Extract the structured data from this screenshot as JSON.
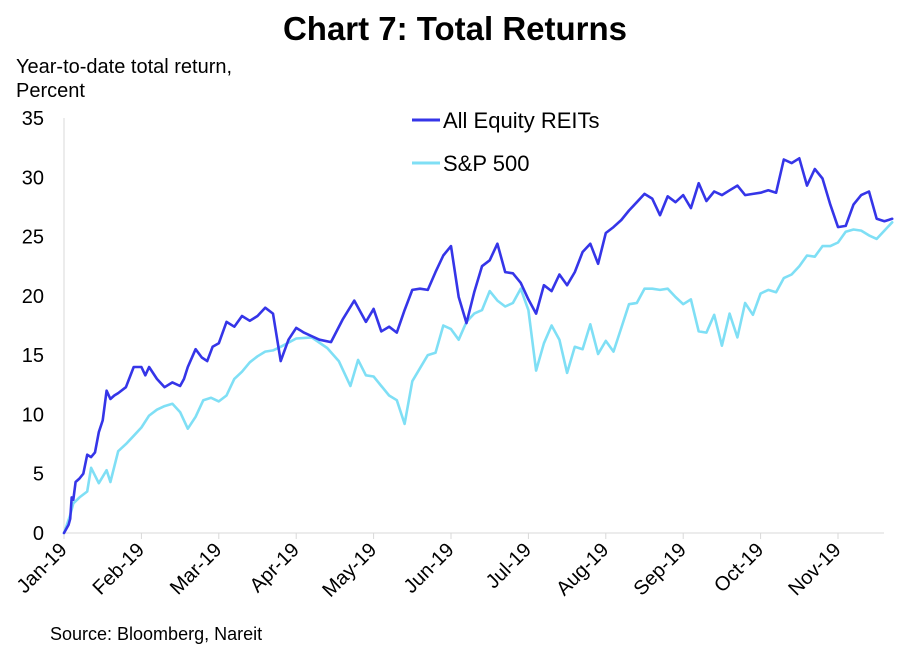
{
  "chart_data": {
    "type": "line",
    "title": "Chart 7: Total Returns",
    "ylabel_lines": [
      "Year-to-date total return,",
      "Percent"
    ],
    "xlabel": "",
    "ylim": [
      0,
      35
    ],
    "y_ticks": [
      0,
      5,
      10,
      15,
      20,
      25,
      30,
      35
    ],
    "x_tick_labels": [
      "Jan-19",
      "Feb-19",
      "Mar-19",
      "Apr-19",
      "May-19",
      "Jun-19",
      "Jul-19",
      "Aug-19",
      "Sep-19",
      "Oct-19",
      "Nov-19"
    ],
    "x_domain_months": [
      0,
      10.7
    ],
    "legend_position": "top-center",
    "grid": false,
    "source": "Source: Bloomberg, Nareit",
    "series": [
      {
        "name": "All Equity REITs",
        "color": "#3535e8",
        "x": [
          0.0,
          0.06,
          0.08,
          0.1,
          0.12,
          0.15,
          0.2,
          0.25,
          0.3,
          0.35,
          0.4,
          0.45,
          0.5,
          0.55,
          0.6,
          0.65,
          0.7,
          0.8,
          0.9,
          1.0,
          1.05,
          1.1,
          1.2,
          1.3,
          1.4,
          1.5,
          1.55,
          1.6,
          1.7,
          1.78,
          1.85,
          1.92,
          2.0,
          2.1,
          2.2,
          2.3,
          2.4,
          2.5,
          2.6,
          2.7,
          2.8,
          2.9,
          3.0,
          3.05,
          3.1,
          3.2,
          3.3,
          3.45,
          3.6,
          3.75,
          3.9,
          4.0,
          4.1,
          4.2,
          4.3,
          4.4,
          4.5,
          4.6,
          4.7,
          4.8,
          4.9,
          5.0,
          5.1,
          5.2,
          5.3,
          5.4,
          5.5,
          5.6,
          5.7,
          5.8,
          5.9,
          6.0,
          6.1,
          6.2,
          6.3,
          6.4,
          6.5,
          6.6,
          6.7,
          6.8,
          6.9,
          7.0,
          7.1,
          7.2,
          7.3,
          7.4,
          7.5,
          7.6,
          7.7,
          7.8,
          7.9,
          8.0,
          8.1,
          8.2,
          8.3,
          8.4,
          8.5,
          8.6,
          8.7,
          8.8,
          8.9,
          9.0,
          9.1,
          9.2,
          9.3,
          9.4,
          9.5,
          9.6,
          9.7,
          9.8,
          9.9,
          10.0,
          10.1,
          10.2,
          10.3,
          10.4,
          10.5,
          10.6,
          10.7
        ],
        "values": [
          0.0,
          0.7,
          1.2,
          3.0,
          2.8,
          4.3,
          4.6,
          5.0,
          6.6,
          6.4,
          6.8,
          8.5,
          9.5,
          12.0,
          11.3,
          11.6,
          11.8,
          12.3,
          14.0,
          14.0,
          13.3,
          14.0,
          13.0,
          12.3,
          12.7,
          12.4,
          13.0,
          14.0,
          15.5,
          14.8,
          14.5,
          15.7,
          16.0,
          17.8,
          17.4,
          18.3,
          17.9,
          18.3,
          19.0,
          18.5,
          14.5,
          16.3,
          17.3,
          17.1,
          16.9,
          16.6,
          16.3,
          16.1,
          18.0,
          19.6,
          17.8,
          18.9,
          17.0,
          17.4,
          16.9,
          18.8,
          20.5,
          20.6,
          20.5,
          22.0,
          23.4,
          24.2,
          19.9,
          17.7,
          20.3,
          22.5,
          23.0,
          24.4,
          22.0,
          21.9,
          21.1,
          19.7,
          18.5,
          20.9,
          20.4,
          21.8,
          20.9,
          22.0,
          23.7,
          24.4,
          22.7,
          25.3,
          25.8,
          26.4,
          27.2,
          27.9,
          28.6,
          28.2,
          26.8,
          28.4,
          27.9,
          28.5,
          27.4,
          29.5,
          28.0,
          28.8,
          28.5,
          28.9,
          29.3,
          28.5,
          28.6,
          28.7,
          28.9,
          28.7,
          31.5,
          31.2,
          31.6,
          29.3,
          30.7,
          29.9,
          27.7,
          25.8,
          25.9,
          27.7,
          28.5,
          28.8,
          26.5,
          26.3,
          26.5
        ],
        "labels_note": "values read from chart by eye"
      },
      {
        "name": "S&P 500",
        "color": "#7fdff5",
        "x": [
          0.0,
          0.08,
          0.12,
          0.2,
          0.3,
          0.35,
          0.45,
          0.55,
          0.6,
          0.7,
          0.8,
          0.9,
          1.0,
          1.1,
          1.2,
          1.3,
          1.4,
          1.5,
          1.6,
          1.7,
          1.8,
          1.9,
          2.0,
          2.1,
          2.2,
          2.3,
          2.4,
          2.5,
          2.6,
          2.7,
          2.8,
          3.0,
          3.2,
          3.4,
          3.55,
          3.7,
          3.8,
          3.9,
          4.0,
          4.1,
          4.2,
          4.3,
          4.4,
          4.5,
          4.6,
          4.7,
          4.8,
          4.9,
          5.0,
          5.1,
          5.2,
          5.3,
          5.4,
          5.5,
          5.6,
          5.7,
          5.8,
          5.9,
          6.0,
          6.1,
          6.2,
          6.3,
          6.4,
          6.5,
          6.6,
          6.7,
          6.8,
          6.9,
          7.0,
          7.1,
          7.2,
          7.3,
          7.4,
          7.5,
          7.6,
          7.7,
          7.8,
          7.9,
          8.0,
          8.1,
          8.2,
          8.3,
          8.4,
          8.5,
          8.6,
          8.7,
          8.8,
          8.9,
          9.0,
          9.1,
          9.2,
          9.3,
          9.4,
          9.5,
          9.6,
          9.7,
          9.8,
          9.9,
          10.0,
          10.1,
          10.2,
          10.3,
          10.4,
          10.5,
          10.6,
          10.7
        ],
        "values": [
          0.0,
          1.5,
          2.5,
          3.0,
          3.5,
          5.5,
          4.2,
          5.3,
          4.3,
          6.9,
          7.5,
          8.2,
          8.9,
          9.9,
          10.4,
          10.7,
          10.9,
          10.2,
          8.8,
          9.8,
          11.2,
          11.4,
          11.1,
          11.6,
          13.0,
          13.6,
          14.4,
          14.9,
          15.3,
          15.4,
          15.7,
          16.4,
          16.5,
          15.6,
          14.5,
          12.4,
          14.6,
          13.3,
          13.2,
          12.4,
          11.6,
          11.2,
          9.2,
          12.8,
          13.9,
          15.0,
          15.2,
          17.5,
          17.2,
          16.3,
          17.8,
          18.5,
          18.8,
          20.4,
          19.6,
          19.1,
          19.4,
          20.6,
          18.8,
          13.7,
          16.0,
          17.5,
          16.3,
          13.5,
          15.7,
          15.5,
          17.6,
          15.1,
          16.2,
          15.3,
          17.3,
          19.3,
          19.4,
          20.6,
          20.6,
          20.5,
          20.6,
          19.9,
          19.3,
          19.7,
          17.0,
          16.9,
          18.4,
          15.8,
          18.5,
          16.5,
          19.4,
          18.4,
          20.2,
          20.5,
          20.3,
          21.5,
          21.8,
          22.5,
          23.4,
          23.3,
          24.2,
          24.2,
          24.5,
          25.4,
          25.6,
          25.5,
          25.1,
          24.8,
          25.5,
          26.2
        ]
      }
    ]
  }
}
